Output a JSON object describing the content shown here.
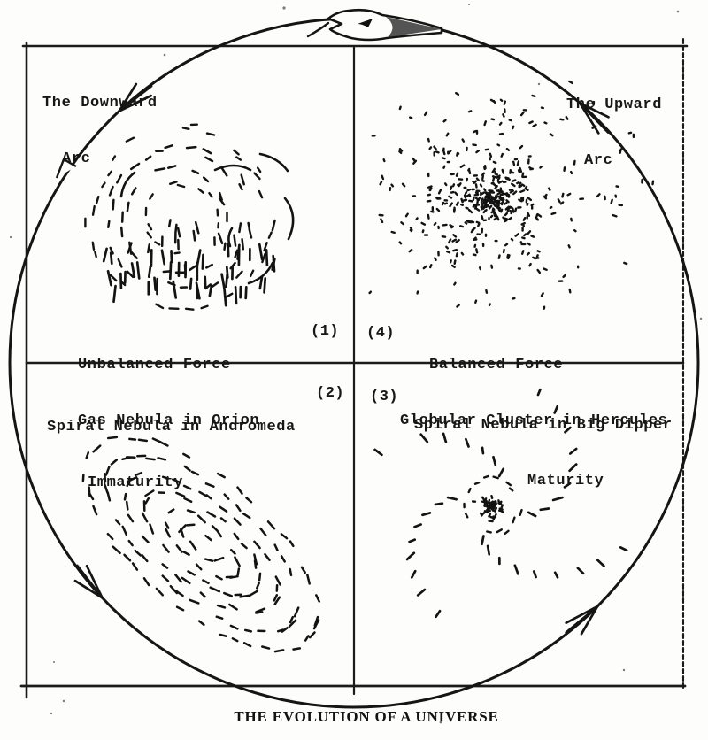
{
  "title": "THE EVOLUTION OF A UNIVERSE",
  "arcs": {
    "downward_line1": "The Downward",
    "downward_line2": "Arc",
    "upward_line1": "The Upward",
    "upward_line2": "Arc"
  },
  "quadrants": [
    {
      "number": "(1)",
      "line1": "Unbalanced Force",
      "line2": "Gas Nebula in Orion",
      "figure": "gas-nebula-orion"
    },
    {
      "number": "(2)",
      "line1": "Spiral Nebula in Andromeda",
      "line2": "Immaturity",
      "figure": "spiral-nebula-andromeda"
    },
    {
      "number": "(3)",
      "line1": "Spiral Nebula in Big Dipper",
      "line2": "Maturity",
      "figure": "spiral-nebula-big-dipper"
    },
    {
      "number": "(4)",
      "line1": "Balanced Force",
      "line2": "Globular Cluster in Hercules",
      "figure": "globular-cluster-hercules"
    }
  ],
  "colors": {
    "ink": "#151515",
    "paper": "#fdfdfb"
  }
}
